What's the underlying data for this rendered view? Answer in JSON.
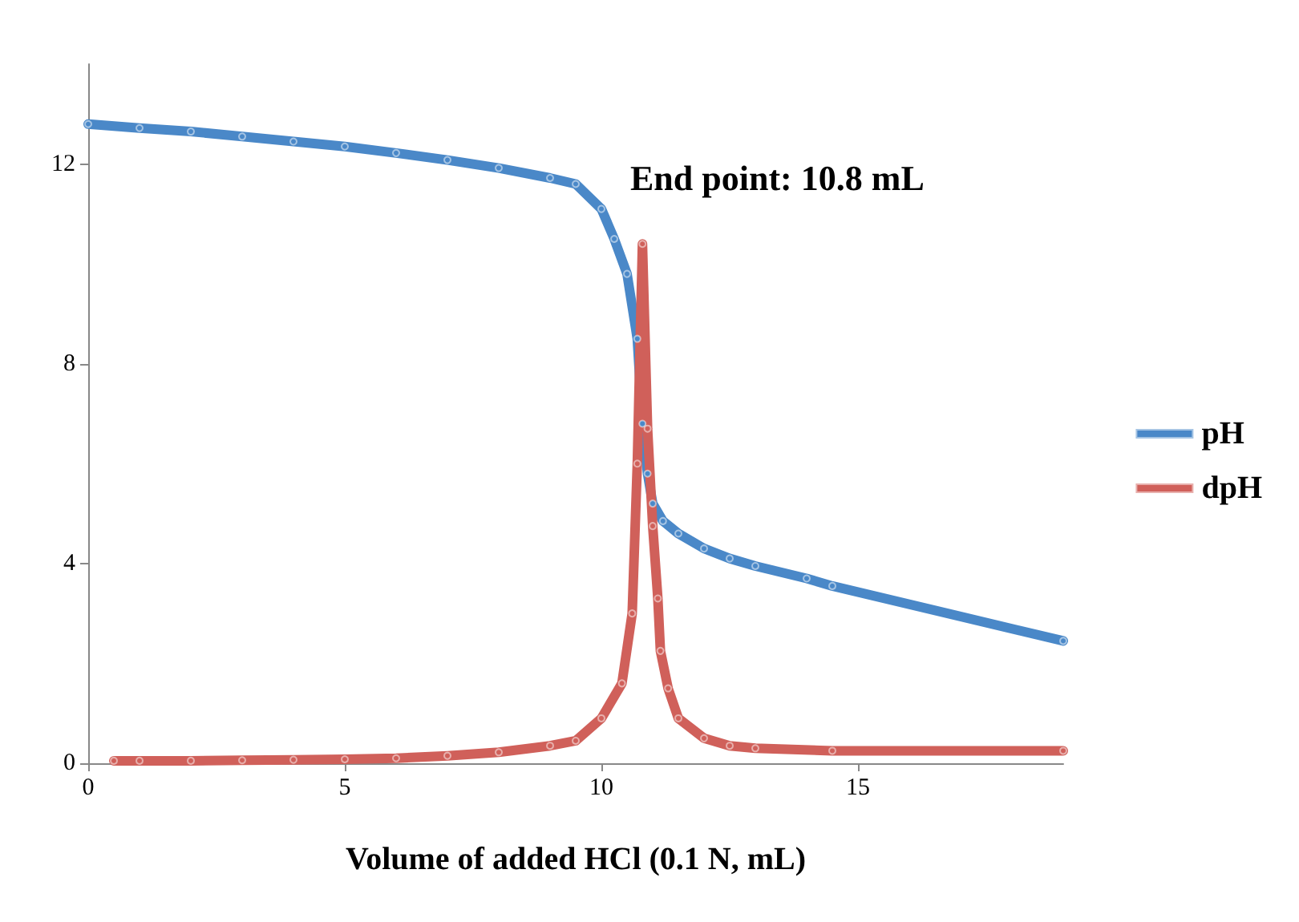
{
  "chart_data": {
    "type": "line",
    "xlabel": "Volume of added HCl (0.1 N, mL)",
    "annotations": [
      "End point: 10.8 mL"
    ],
    "xlim": [
      0,
      19
    ],
    "xticks": [
      0,
      5,
      10,
      15
    ],
    "ylim": [
      0,
      14
    ],
    "yticks": [
      0,
      4,
      8,
      12
    ],
    "grid": false,
    "legend": "right",
    "marker": "circle",
    "line_style": "solid",
    "series": [
      {
        "name": "pH",
        "color": "#4a88c8",
        "x": [
          0,
          1,
          2,
          3,
          4,
          5,
          6,
          7,
          8,
          9,
          9.5,
          10,
          10.25,
          10.5,
          10.7,
          10.8,
          10.9,
          11,
          11.2,
          11.5,
          12,
          12.5,
          13,
          14,
          14.5,
          19
        ],
        "values": [
          12.8,
          12.72,
          12.65,
          12.55,
          12.45,
          12.35,
          12.22,
          12.08,
          11.92,
          11.72,
          11.6,
          11.1,
          10.5,
          9.8,
          8.5,
          6.8,
          5.8,
          5.2,
          4.85,
          4.6,
          4.3,
          4.1,
          3.95,
          3.7,
          3.55,
          2.45
        ]
      },
      {
        "name": "dpH",
        "color": "#d0605a",
        "x": [
          0.5,
          1,
          2,
          3,
          4,
          5,
          6,
          7,
          8,
          9,
          9.5,
          10,
          10.4,
          10.6,
          10.7,
          10.8,
          10.9,
          11,
          11.1,
          11.15,
          11.3,
          11.5,
          12,
          12.5,
          13,
          14.5,
          19
        ],
        "values": [
          0.05,
          0.05,
          0.05,
          0.06,
          0.07,
          0.08,
          0.1,
          0.15,
          0.22,
          0.35,
          0.45,
          0.9,
          1.6,
          3,
          6,
          10.4,
          6.7,
          4.75,
          3.3,
          2.25,
          1.5,
          0.9,
          0.5,
          0.35,
          0.3,
          0.25,
          0.25
        ]
      }
    ]
  }
}
